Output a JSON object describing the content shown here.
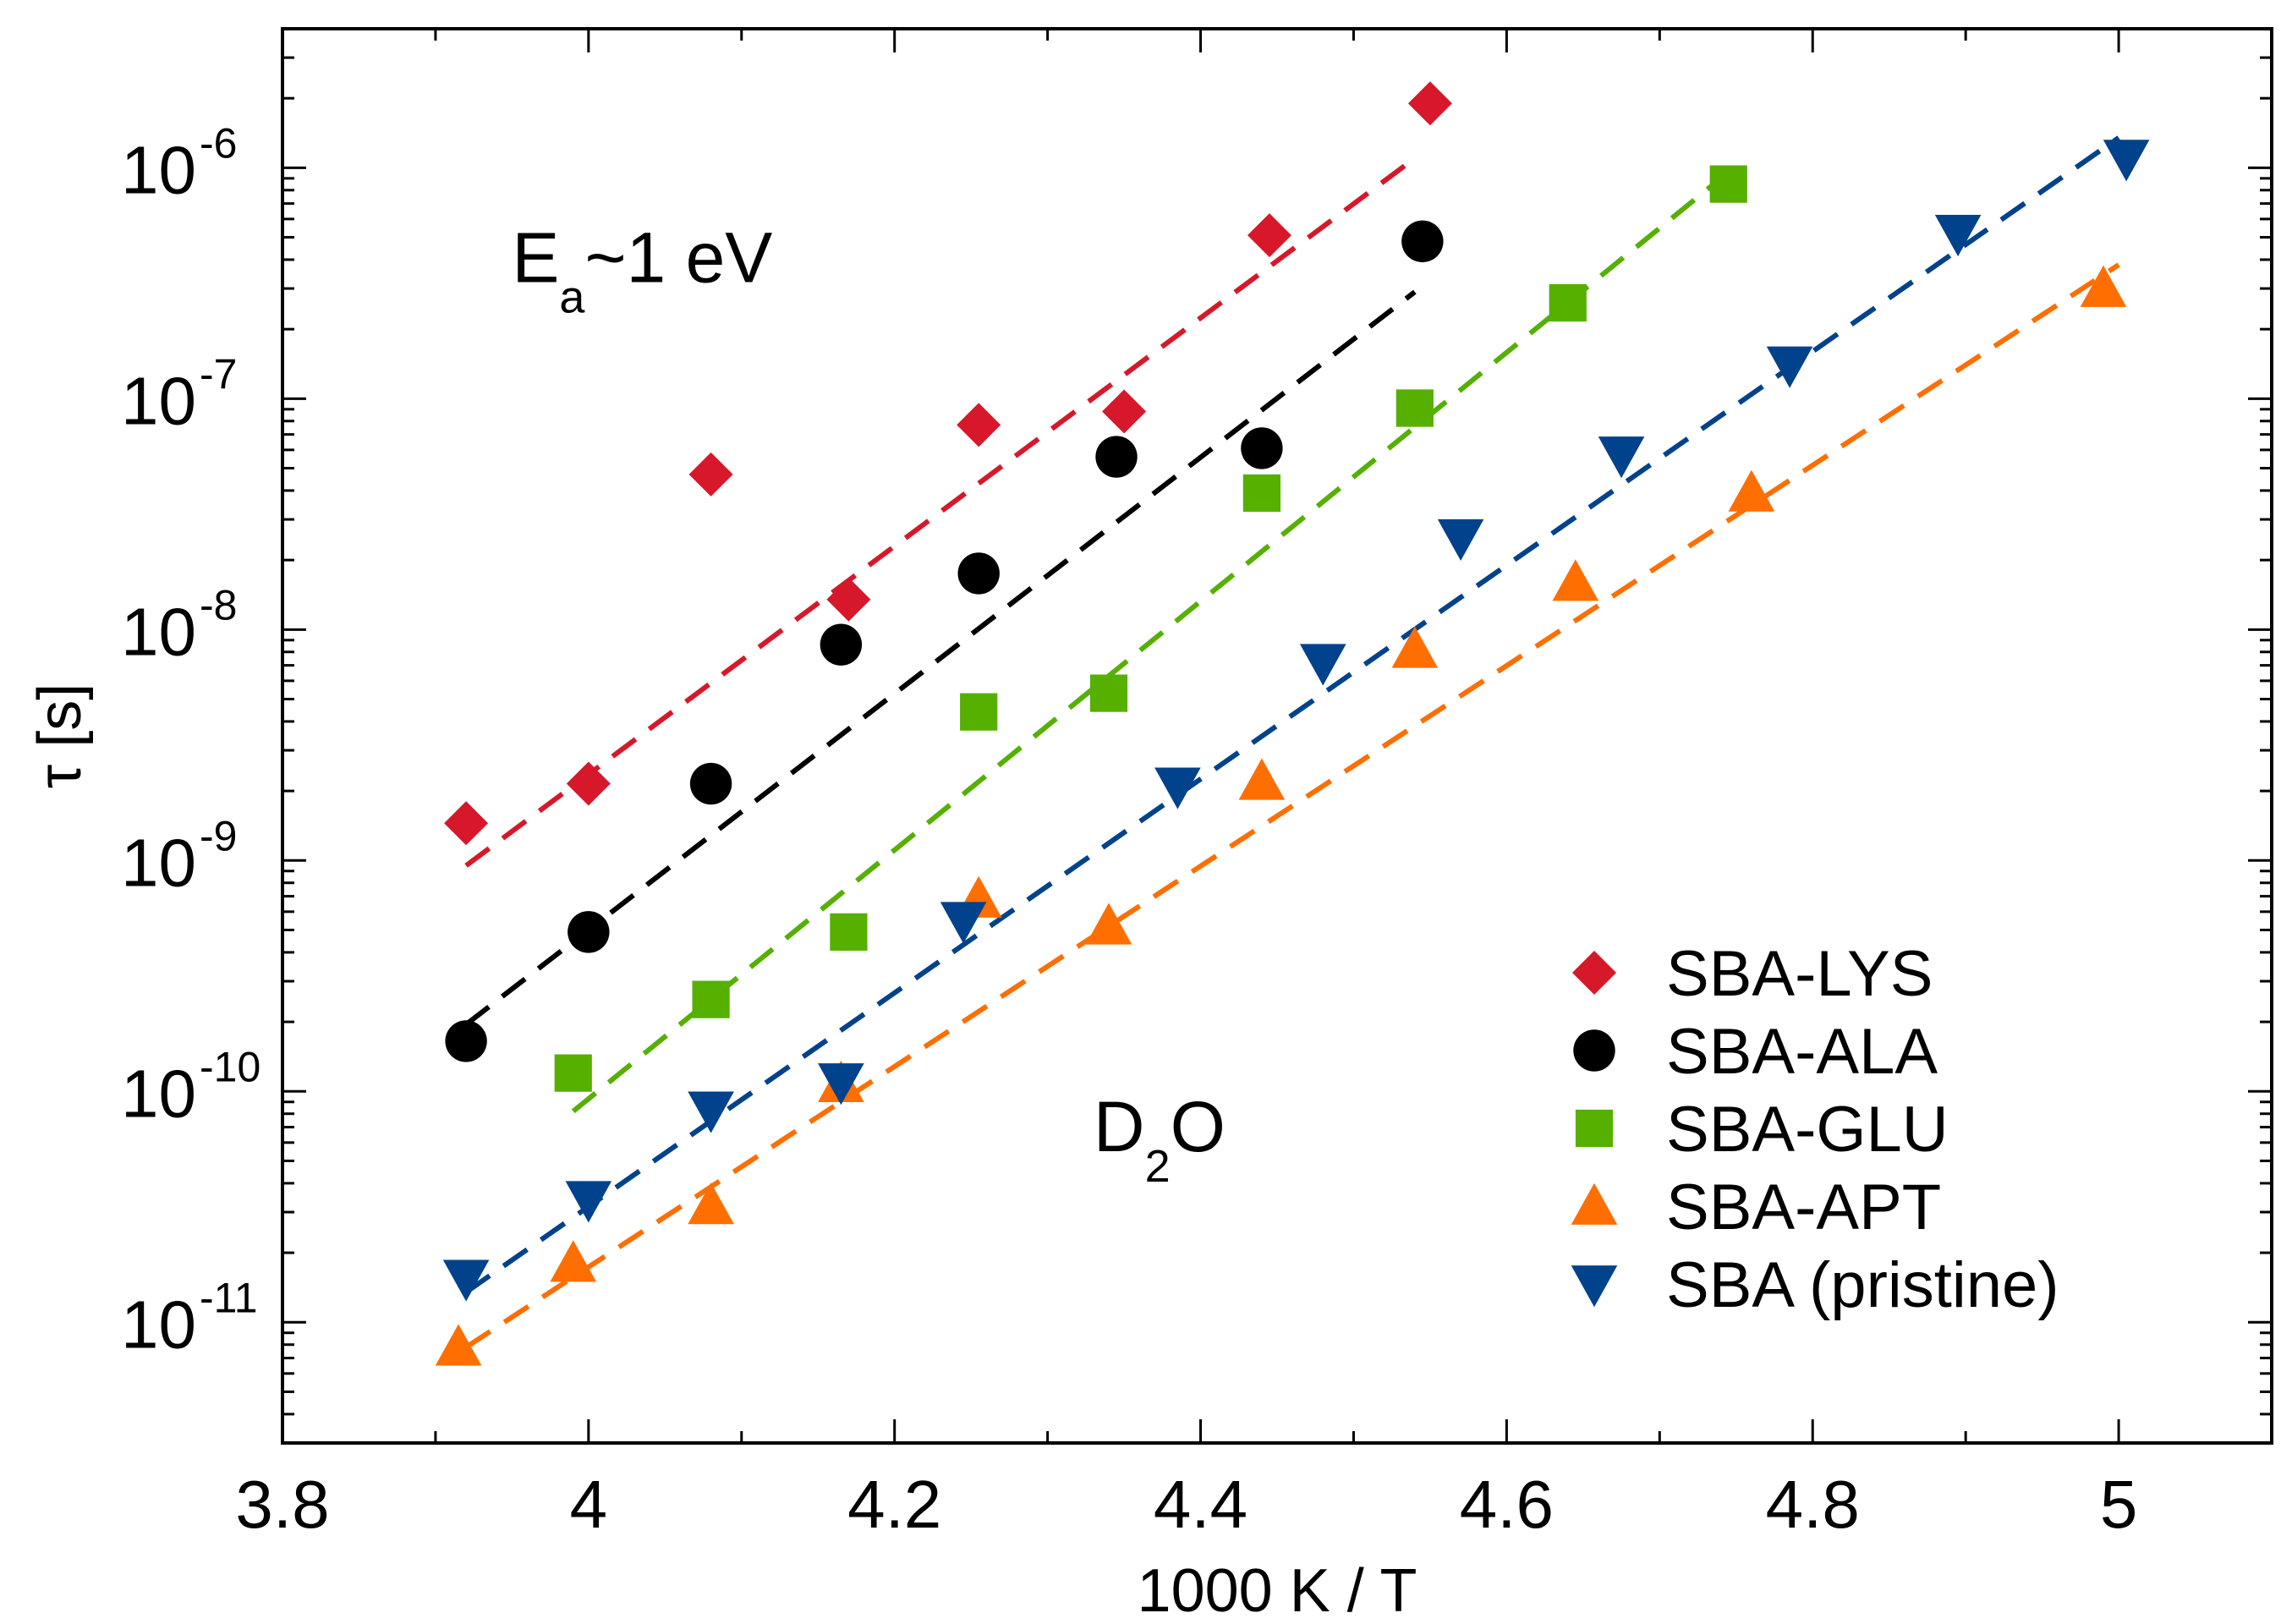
{
  "chart_data": {
    "type": "scatter",
    "xlabel": "1000 K / T",
    "ylabel": "τ [s]",
    "xlim": [
      3.8,
      5.1
    ],
    "ylim": [
      3e-12,
      4e-06
    ],
    "yscale": "log",
    "xticks": [
      3.8,
      4.0,
      4.2,
      4.4,
      4.6,
      4.8,
      5.0
    ],
    "xtick_labels": [
      "3.8",
      "4",
      "4.2",
      "4.4",
      "4.6",
      "4.8",
      "5"
    ],
    "yticks": [
      {
        "value": 1e-11,
        "base": "10",
        "exp": "-11"
      },
      {
        "value": 1e-10,
        "base": "10",
        "exp": "-10"
      },
      {
        "value": 1e-09,
        "base": "10",
        "exp": "-9"
      },
      {
        "value": 1e-08,
        "base": "10",
        "exp": "-8"
      },
      {
        "value": 1e-07,
        "base": "10",
        "exp": "-7"
      },
      {
        "value": 1e-06,
        "base": "10",
        "exp": "-6"
      }
    ],
    "annotations": [
      {
        "id": "ea",
        "main": "E",
        "sub": "a",
        "tail": "~1 eV",
        "x": 3.95,
        "y": 3.2e-07
      },
      {
        "id": "solvent",
        "main": "D",
        "sub": "2",
        "tail": "O",
        "x": 4.33,
        "y": 5.5e-11
      }
    ],
    "legend": {
      "position": "bottom-right"
    },
    "series": [
      {
        "name": "SBA-LYS",
        "marker": "diamond",
        "color": "#d7182a",
        "points": [
          [
            3.92,
            1.45e-09
          ],
          [
            4.0,
            2.15e-09
          ],
          [
            4.08,
            4.7e-08
          ],
          [
            4.17,
            1.35e-08
          ],
          [
            4.255,
            7.7e-08
          ],
          [
            4.35,
            8.8e-08
          ],
          [
            4.445,
            5.1e-07
          ],
          [
            4.55,
            1.9e-06
          ]
        ],
        "fit": [
          [
            3.92,
            9.5e-10
          ],
          [
            4.54,
            1.1e-06
          ]
        ]
      },
      {
        "name": "SBA-ALA",
        "marker": "circle",
        "color": "#000000",
        "points": [
          [
            3.92,
            1.65e-10
          ],
          [
            4.0,
            4.9e-10
          ],
          [
            4.08,
            2.15e-09
          ],
          [
            4.165,
            8.6e-09
          ],
          [
            4.255,
            1.75e-08
          ],
          [
            4.345,
            5.6e-08
          ],
          [
            4.44,
            6.1e-08
          ],
          [
            4.545,
            4.8e-07
          ]
        ],
        "fit": [
          [
            3.92,
            1.95e-10
          ],
          [
            4.54,
            2.9e-07
          ]
        ]
      },
      {
        "name": "SBA-GLU",
        "marker": "square",
        "color": "#55b000",
        "points": [
          [
            3.99,
            1.2e-10
          ],
          [
            4.08,
            2.5e-10
          ],
          [
            4.17,
            4.9e-10
          ],
          [
            4.255,
            4.4e-09
          ],
          [
            4.34,
            5.3e-09
          ],
          [
            4.44,
            3.9e-08
          ],
          [
            4.54,
            9.1e-08
          ],
          [
            4.64,
            2.6e-07
          ],
          [
            4.745,
            8.5e-07
          ]
        ],
        "fit": [
          [
            3.99,
            8.2e-11
          ],
          [
            4.74,
            9e-07
          ]
        ]
      },
      {
        "name": "SBA-APT",
        "marker": "triangle-up",
        "color": "#ff6e00",
        "points": [
          [
            3.915,
            7.8e-12
          ],
          [
            3.99,
            1.8e-11
          ],
          [
            4.08,
            3.2e-11
          ],
          [
            4.165,
            1.08e-10
          ],
          [
            4.255,
            6.8e-10
          ],
          [
            4.34,
            5.2e-10
          ],
          [
            4.44,
            2.2e-09
          ],
          [
            4.54,
            8.2e-09
          ],
          [
            4.645,
            1.6e-08
          ],
          [
            4.76,
            3.9e-08
          ],
          [
            4.99,
            3e-07
          ]
        ],
        "fit": [
          [
            3.92,
            7.8e-12
          ],
          [
            5.0,
            3.8e-07
          ]
        ]
      },
      {
        "name": "SBA (pristine)",
        "marker": "triangle-down",
        "color": "#00428c",
        "points": [
          [
            3.92,
            1.55e-11
          ],
          [
            4.0,
            3.4e-11
          ],
          [
            4.08,
            8.3e-11
          ],
          [
            4.165,
            1.1e-10
          ],
          [
            4.245,
            5.5e-10
          ],
          [
            4.385,
            2.1e-09
          ],
          [
            4.48,
            7.2e-09
          ],
          [
            4.57,
            2.5e-08
          ],
          [
            4.675,
            5.7e-08
          ],
          [
            4.785,
            1.4e-07
          ],
          [
            4.895,
            5.2e-07
          ],
          [
            5.005,
            1.1e-06
          ]
        ],
        "fit": [
          [
            3.92,
            1.35e-11
          ],
          [
            5.0,
            1.35e-06
          ]
        ]
      }
    ]
  }
}
